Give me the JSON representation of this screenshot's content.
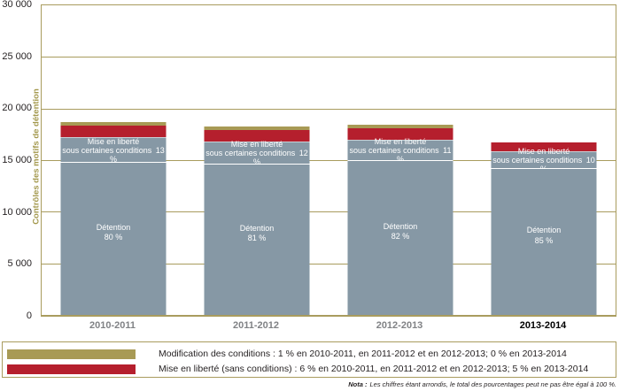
{
  "chart_data": {
    "type": "bar",
    "stacked": true,
    "ylabel": "Contrôles des motifs de détention",
    "ylim": [
      0,
      30000
    ],
    "ytick_interval": 5000,
    "yticks": [
      "30 000",
      "25 000",
      "20 000",
      "15 000",
      "10 000",
      "5 000",
      "0"
    ],
    "categories": [
      "2010-2011",
      "2011-2012",
      "2012-2013",
      "2013-2014"
    ],
    "grid": true,
    "legend_position": "bottom",
    "series_order_bottom_to_top": [
      "Détention",
      "Mise en liberté sous certaines conditions",
      "Mise en liberté (sans conditions)",
      "Modification des conditions"
    ],
    "bars": [
      {
        "category": "2010-2011",
        "x_label_bold": false,
        "total": 18500,
        "segments": {
          "detention": {
            "value": 14800,
            "pct": 80,
            "label": "Détention",
            "pct_label": "80 %"
          },
          "conditions": {
            "value": 2405,
            "pct": 13,
            "label_line1": "Mise en liberté",
            "label_line2": "sous certaines conditions",
            "pct_label": "13 %"
          },
          "liberation": {
            "value": 1110,
            "pct": 6
          },
          "modification": {
            "value": 185,
            "pct": 1
          }
        }
      },
      {
        "category": "2011-2012",
        "x_label_bold": false,
        "total": 18100,
        "segments": {
          "detention": {
            "value": 14660,
            "pct": 81,
            "label": "Détention",
            "pct_label": "81 %"
          },
          "conditions": {
            "value": 2170,
            "pct": 12,
            "label_line1": "Mise en liberté",
            "label_line2": "sous certaines conditions",
            "pct_label": "12 %"
          },
          "liberation": {
            "value": 1090,
            "pct": 6
          },
          "modification": {
            "value": 180,
            "pct": 1
          }
        }
      },
      {
        "category": "2012-2013",
        "x_label_bold": false,
        "total": 18300,
        "segments": {
          "detention": {
            "value": 15000,
            "pct": 82,
            "label": "Détention",
            "pct_label": "82 %"
          },
          "conditions": {
            "value": 2010,
            "pct": 11,
            "label_line1": "Mise en liberté",
            "label_line2": "sous certaines conditions",
            "pct_label": "11 %"
          },
          "liberation": {
            "value": 1100,
            "pct": 6
          },
          "modification": {
            "value": 180,
            "pct": 1
          }
        }
      },
      {
        "category": "2013-2014",
        "x_label_bold": true,
        "total": 16700,
        "segments": {
          "detention": {
            "value": 14200,
            "pct": 85,
            "label": "Détention",
            "pct_label": "85 %"
          },
          "conditions": {
            "value": 1670,
            "pct": 10,
            "label_line1": "Mise en liberté",
            "label_line2": "sous certaines conditions",
            "pct_label": "10 %"
          },
          "liberation": {
            "value": 830,
            "pct": 5
          },
          "modification": {
            "value": 0,
            "pct": 0
          }
        }
      }
    ]
  },
  "colors": {
    "bar_gray": "#8698A5",
    "bar_red": "#B51F2D",
    "bar_olive": "#A89A55",
    "grid": "#A99C5E",
    "axis_title": "#A3984C",
    "x_label_gray": "#808285",
    "x_label_emph": "#000000"
  },
  "legend": {
    "items": [
      {
        "name": "modification-des-conditions",
        "color": "#A89A55",
        "text": "Modification des conditions : 1 % en 2010-2011, en 2011-2012 et en 2012-2013; 0 % en 2013-2014"
      },
      {
        "name": "mise-en-liberte-sans-conditions",
        "color": "#B51F2D",
        "text": "Mise en liberté (sans conditions) : 6 % en 2010-2011, en 2011-2012 et en 2012-2013; 5 % en 2013-2014"
      }
    ]
  },
  "nota": {
    "prefix": "Nota :",
    "text": "Les chiffres étant arrondis, le total des pourcentages peut ne pas être égal à 100 %."
  }
}
